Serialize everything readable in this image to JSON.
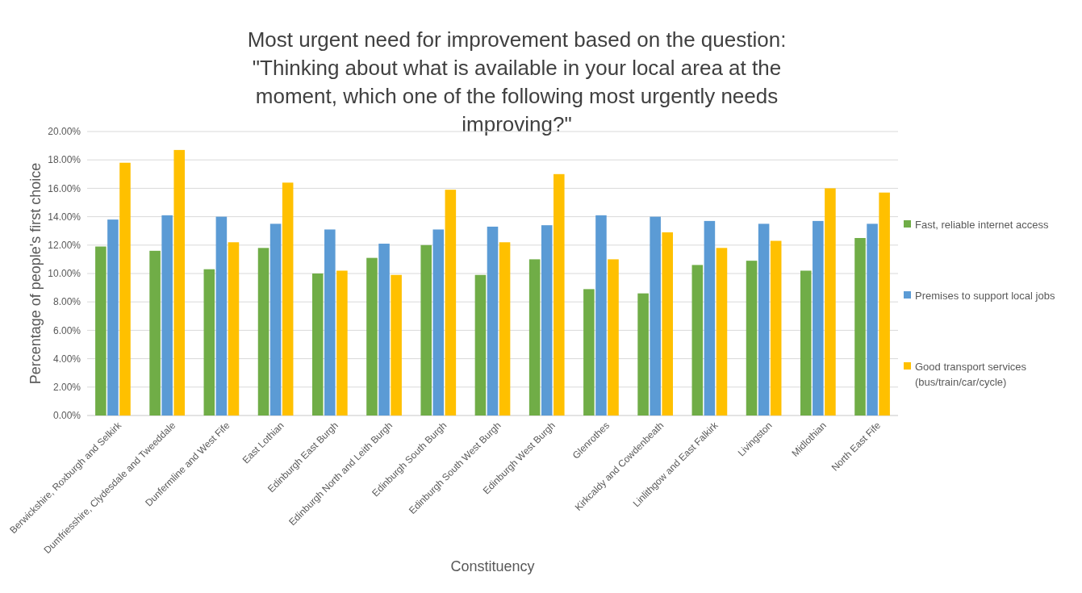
{
  "chart_data": {
    "type": "bar",
    "title": "Most urgent need for improvement based on the question: \"Thinking about what is available in your local area at the moment, which one of the following most urgently needs improving?\"",
    "xlabel": "Constituency",
    "ylabel": "Percentage of people's first choice",
    "categories": [
      "Berwickshire, Roxburgh and Selkirk",
      "Dumfriesshire, Clydesdale and Tweeddale",
      "Dunfermline and West Fife",
      "East Lothian",
      "Edinburgh East Burgh",
      "Edinburgh North and Leith Burgh",
      "Edinburgh South Burgh",
      "Edinburgh South West Burgh",
      "Edinburgh West Burgh",
      "Glenrothes",
      "Kirkcaldy and Cowdenbeath",
      "Linlithgow and East Falkirk",
      "Livingston",
      "Midlothian",
      "North East Fife"
    ],
    "series": [
      {
        "name": "Fast, reliable internet access",
        "color": "#70ad47",
        "values": [
          11.9,
          11.6,
          10.3,
          11.8,
          10.0,
          11.1,
          12.0,
          9.9,
          11.0,
          8.9,
          8.6,
          10.6,
          10.9,
          10.2,
          12.5
        ]
      },
      {
        "name": "Premises to support local jobs",
        "color": "#5b9bd5",
        "values": [
          13.8,
          14.1,
          14.0,
          13.5,
          13.1,
          12.1,
          13.1,
          13.3,
          13.4,
          14.1,
          14.0,
          13.7,
          13.5,
          13.7,
          13.5
        ]
      },
      {
        "name": "Good transport services (bus/train/car/cycle)",
        "color": "#ffc000",
        "values": [
          17.8,
          18.7,
          12.2,
          16.4,
          10.2,
          9.9,
          15.9,
          12.2,
          17.0,
          11.0,
          12.9,
          11.8,
          12.3,
          16.0,
          15.7
        ]
      }
    ],
    "ylim": [
      0,
      20
    ],
    "yticks": [
      {
        "value": 0,
        "label": "0.00%"
      },
      {
        "value": 2,
        "label": "2.00%"
      },
      {
        "value": 4,
        "label": "4.00%"
      },
      {
        "value": 6,
        "label": "6.00%"
      },
      {
        "value": 8,
        "label": "8.00%"
      },
      {
        "value": 10,
        "label": "10.00%"
      },
      {
        "value": 12,
        "label": "12.00%"
      },
      {
        "value": 14,
        "label": "14.00%"
      },
      {
        "value": 16,
        "label": "16.00%"
      },
      {
        "value": 18,
        "label": "18.00%"
      },
      {
        "value": 20,
        "label": "20.00%"
      }
    ],
    "grid": "y",
    "legend": "right"
  }
}
